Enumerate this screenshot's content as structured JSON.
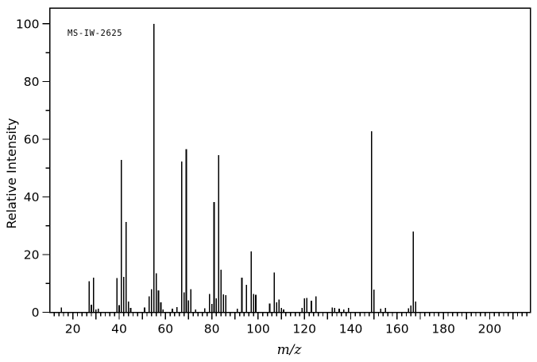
{
  "chart_data": {
    "type": "bar",
    "subtype": "mass-spectrum",
    "annotation": "MS-IW-2625",
    "xlabel": "m/z",
    "ylabel": "Relative Intensity",
    "xlim": [
      10,
      217.5
    ],
    "ylim": [
      0,
      105.5
    ],
    "grid": false,
    "legend": "none",
    "x_axis": {
      "minor_step": 2,
      "major_step": 10,
      "label_step": 20,
      "first_minor": 12,
      "last_minor": 216,
      "first_label": 20,
      "last_label": 200
    },
    "y_axis": {
      "minor_step": 10,
      "major_step": 20,
      "label_step": 20,
      "first_label": 0,
      "last_label": 100
    },
    "series": [
      {
        "name": "relative-intensity",
        "points": [
          [
            15,
            1.7
          ],
          [
            27,
            10.8
          ],
          [
            28,
            2.6
          ],
          [
            29,
            12.0
          ],
          [
            30,
            1.0
          ],
          [
            31,
            1.2
          ],
          [
            39,
            11.8
          ],
          [
            40,
            2.5
          ],
          [
            41,
            52.8
          ],
          [
            42,
            12.3
          ],
          [
            43,
            31.3
          ],
          [
            44,
            3.7
          ],
          [
            45,
            1.5
          ],
          [
            51,
            1.7
          ],
          [
            53,
            5.5
          ],
          [
            54,
            8.0
          ],
          [
            55,
            100.0
          ],
          [
            56,
            13.5
          ],
          [
            57,
            7.6
          ],
          [
            58,
            3.5
          ],
          [
            59,
            1.0
          ],
          [
            63,
            1.2
          ],
          [
            65,
            1.8
          ],
          [
            67,
            52.2
          ],
          [
            68,
            6.9
          ],
          [
            69,
            56.6
          ],
          [
            70,
            4.2
          ],
          [
            71,
            8.0
          ],
          [
            73,
            1.0
          ],
          [
            77,
            1.4
          ],
          [
            79,
            6.4
          ],
          [
            80,
            2.9
          ],
          [
            81,
            38.2
          ],
          [
            82,
            4.8
          ],
          [
            83,
            54.5
          ],
          [
            84,
            14.7
          ],
          [
            85,
            6.2
          ],
          [
            86,
            5.9
          ],
          [
            91,
            1.2
          ],
          [
            93,
            12.0
          ],
          [
            95,
            9.5
          ],
          [
            97,
            21.1
          ],
          [
            98,
            6.4
          ],
          [
            99,
            6.0
          ],
          [
            105,
            3.0
          ],
          [
            107,
            13.8
          ],
          [
            108,
            3.5
          ],
          [
            109,
            4.4
          ],
          [
            110,
            1.5
          ],
          [
            111,
            1.0
          ],
          [
            119,
            1.5
          ],
          [
            120,
            4.8
          ],
          [
            121,
            5.0
          ],
          [
            123,
            4.0
          ],
          [
            125,
            5.5
          ],
          [
            132,
            1.7
          ],
          [
            133,
            1.5
          ],
          [
            135,
            1.2
          ],
          [
            137,
            1.0
          ],
          [
            139,
            1.5
          ],
          [
            149,
            62.7
          ],
          [
            150,
            7.8
          ],
          [
            153,
            1.2
          ],
          [
            155,
            1.5
          ],
          [
            165,
            1.4
          ],
          [
            166,
            2.4
          ],
          [
            167,
            28.0
          ],
          [
            168,
            3.7
          ]
        ]
      }
    ]
  },
  "colors": {
    "foreground": "#000000",
    "background": "#ffffff"
  }
}
